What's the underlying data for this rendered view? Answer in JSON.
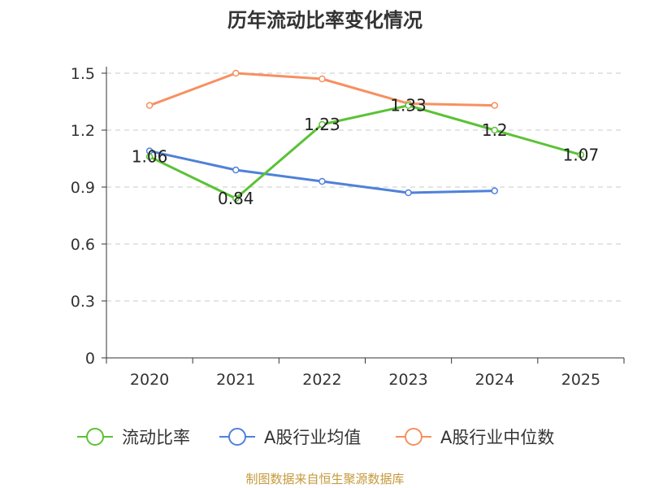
{
  "chart_data": {
    "type": "line",
    "title": "历年流动比率变化情况",
    "categories": [
      "2020",
      "2021",
      "2022",
      "2023",
      "2024",
      "2025"
    ],
    "ylim": [
      0,
      1.5
    ],
    "yticks": [
      "0",
      "0.3",
      "0.6",
      "0.9",
      "1.2",
      "1.5"
    ],
    "grid": true,
    "legend_position": "bottom",
    "series": [
      {
        "name": "流动比率",
        "color": "#5bc236",
        "values": [
          1.06,
          0.84,
          1.23,
          1.33,
          1.2,
          1.07
        ],
        "labels": [
          "1.06",
          "0.84",
          "1.23",
          "1.33",
          "1.2",
          "1.07"
        ]
      },
      {
        "name": "A股行业均值",
        "color": "#4f81d9",
        "values": [
          1.09,
          0.99,
          0.93,
          0.87,
          0.88,
          null
        ]
      },
      {
        "name": "A股行业中位数",
        "color": "#f79060",
        "values": [
          1.33,
          1.5,
          1.47,
          1.34,
          1.33,
          null
        ]
      }
    ]
  },
  "source": "制图数据来自恒生聚源数据库"
}
